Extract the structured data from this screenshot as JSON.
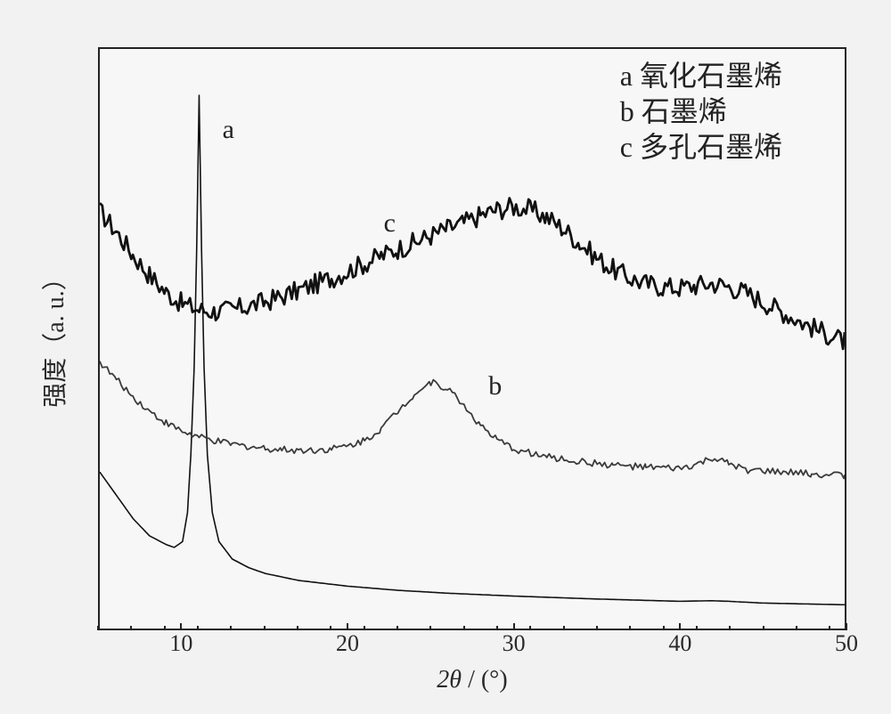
{
  "chart": {
    "type": "xrd-line",
    "background_color": "#f7f7f7",
    "border_color": "#222222",
    "axis_line_width": 2,
    "xlim": [
      5,
      50
    ],
    "xtick_major": [
      10,
      20,
      30,
      40,
      50
    ],
    "xtick_minor_step": 2,
    "ylim_au": [
      0,
      100
    ],
    "x_label": "2θ / (°)",
    "x_label_parts": {
      "theta": "2θ",
      "sep": " / ",
      "unit": "(°)"
    },
    "x_label_fontsize": 28,
    "y_label": "强度（a. u.）",
    "y_label_fontsize": 28,
    "tick_fontsize": 26,
    "tick_color": "#2a2a2a",
    "legend": {
      "position": "top-right",
      "fontsize": 32,
      "color": "#222222",
      "items": [
        {
          "key": "a",
          "label": "a 氧化石墨烯"
        },
        {
          "key": "b",
          "label": "b 石墨烯"
        },
        {
          "key": "c",
          "label": "c 多孔石墨烯"
        }
      ]
    },
    "series": {
      "a": {
        "name": "氧化石墨烯",
        "stroke": "#111111",
        "line_width": 1.6,
        "noise_amp": 0.0,
        "inline_label": {
          "text": "a",
          "x": 12.8,
          "y": 86
        },
        "points": [
          [
            5,
            27
          ],
          [
            6,
            23
          ],
          [
            7,
            19
          ],
          [
            8,
            16
          ],
          [
            9,
            14.5
          ],
          [
            9.5,
            14
          ],
          [
            10,
            15
          ],
          [
            10.3,
            20
          ],
          [
            10.5,
            30
          ],
          [
            10.7,
            45
          ],
          [
            10.85,
            65
          ],
          [
            11,
            92
          ],
          [
            11.15,
            65
          ],
          [
            11.3,
            45
          ],
          [
            11.5,
            30
          ],
          [
            11.8,
            20
          ],
          [
            12.2,
            15
          ],
          [
            13,
            12
          ],
          [
            14,
            10.5
          ],
          [
            15,
            9.5
          ],
          [
            17,
            8.3
          ],
          [
            20,
            7.3
          ],
          [
            23,
            6.6
          ],
          [
            26,
            6.1
          ],
          [
            30,
            5.6
          ],
          [
            35,
            5.1
          ],
          [
            40,
            4.7
          ],
          [
            42,
            4.8
          ],
          [
            43,
            4.7
          ],
          [
            45,
            4.4
          ],
          [
            50,
            4.1
          ]
        ]
      },
      "b": {
        "name": "石墨烯",
        "stroke": "#3b3b3b",
        "line_width": 1.8,
        "noise_amp": 0.6,
        "inline_label": {
          "text": "b",
          "x": 28.8,
          "y": 42
        },
        "points": [
          [
            5,
            46
          ],
          [
            6,
            43
          ],
          [
            7,
            40
          ],
          [
            8,
            37.5
          ],
          [
            9,
            35.5
          ],
          [
            10,
            34
          ],
          [
            11,
            33
          ],
          [
            12,
            32.3
          ],
          [
            13,
            31.8
          ],
          [
            14,
            31.4
          ],
          [
            15,
            31.1
          ],
          [
            16,
            30.9
          ],
          [
            17,
            30.8
          ],
          [
            18,
            30.8
          ],
          [
            19,
            31.0
          ],
          [
            20,
            31.5
          ],
          [
            21,
            32.5
          ],
          [
            22,
            34.5
          ],
          [
            23,
            37.5
          ],
          [
            24,
            40.5
          ],
          [
            25,
            42.5
          ],
          [
            26,
            41.5
          ],
          [
            27,
            38.5
          ],
          [
            28,
            35
          ],
          [
            29,
            32.5
          ],
          [
            30,
            31
          ],
          [
            32,
            29.6
          ],
          [
            34,
            28.8
          ],
          [
            36,
            28.2
          ],
          [
            38,
            27.8
          ],
          [
            40,
            27.6
          ],
          [
            41,
            28.2
          ],
          [
            42,
            29.4
          ],
          [
            43,
            28.4
          ],
          [
            44,
            27.4
          ],
          [
            46,
            27.0
          ],
          [
            48,
            26.7
          ],
          [
            50,
            26.4
          ]
        ]
      },
      "c": {
        "name": "多孔石墨烯",
        "stroke": "#111111",
        "line_width": 2.8,
        "noise_amp": 1.8,
        "inline_label": {
          "text": "c",
          "x": 22.5,
          "y": 70
        },
        "points": [
          [
            5,
            72
          ],
          [
            6,
            68.5
          ],
          [
            7,
            64.5
          ],
          [
            8,
            61
          ],
          [
            9,
            58
          ],
          [
            10,
            56
          ],
          [
            11,
            55
          ],
          [
            12,
            54.7
          ],
          [
            13,
            55
          ],
          [
            14,
            55.6
          ],
          [
            15,
            56.4
          ],
          [
            16,
            57.3
          ],
          [
            17,
            58.3
          ],
          [
            18,
            59.4
          ],
          [
            19,
            60.5
          ],
          [
            20,
            61.7
          ],
          [
            21,
            63
          ],
          [
            22,
            64.3
          ],
          [
            23,
            65.5
          ],
          [
            24,
            66.6
          ],
          [
            25,
            67.8
          ],
          [
            26,
            69
          ],
          [
            27,
            70
          ],
          [
            28,
            71.3
          ],
          [
            29,
            72.3
          ],
          [
            30,
            72.8
          ],
          [
            31,
            72.3
          ],
          [
            32,
            71
          ],
          [
            33,
            69
          ],
          [
            34,
            66.5
          ],
          [
            35,
            64
          ],
          [
            36,
            62
          ],
          [
            37,
            60.5
          ],
          [
            38,
            59.5
          ],
          [
            39,
            59
          ],
          [
            40,
            58.8
          ],
          [
            41,
            59.2
          ],
          [
            42,
            59.6
          ],
          [
            43,
            59.0
          ],
          [
            44,
            58
          ],
          [
            45,
            56.5
          ],
          [
            46,
            55
          ],
          [
            47,
            53.5
          ],
          [
            48,
            52
          ],
          [
            49,
            50.7
          ],
          [
            50,
            49.5
          ]
        ]
      }
    }
  }
}
